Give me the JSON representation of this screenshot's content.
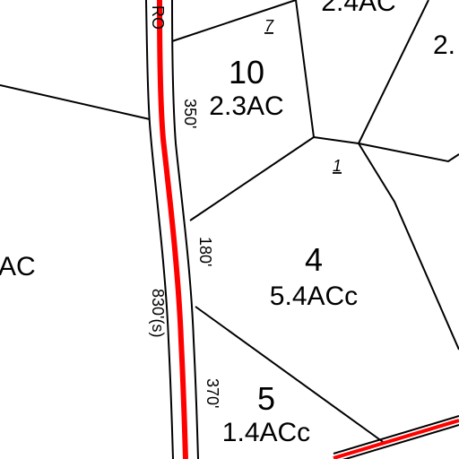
{
  "road": {
    "label": "RO",
    "frontage": "830'(s)"
  },
  "parcels": [
    {
      "number": "10",
      "acreage": "2.3AC",
      "frontage": "350'"
    },
    {
      "number": "4",
      "acreage": "5.4ACc",
      "frontage": "180'"
    },
    {
      "number": "5",
      "acreage": "1.4ACc",
      "frontage": "370'"
    },
    {
      "acreage": "2.4AC"
    },
    {
      "acreage": "2."
    },
    {
      "acreage": "AC"
    }
  ],
  "lot_labels": [
    "7",
    "1"
  ]
}
